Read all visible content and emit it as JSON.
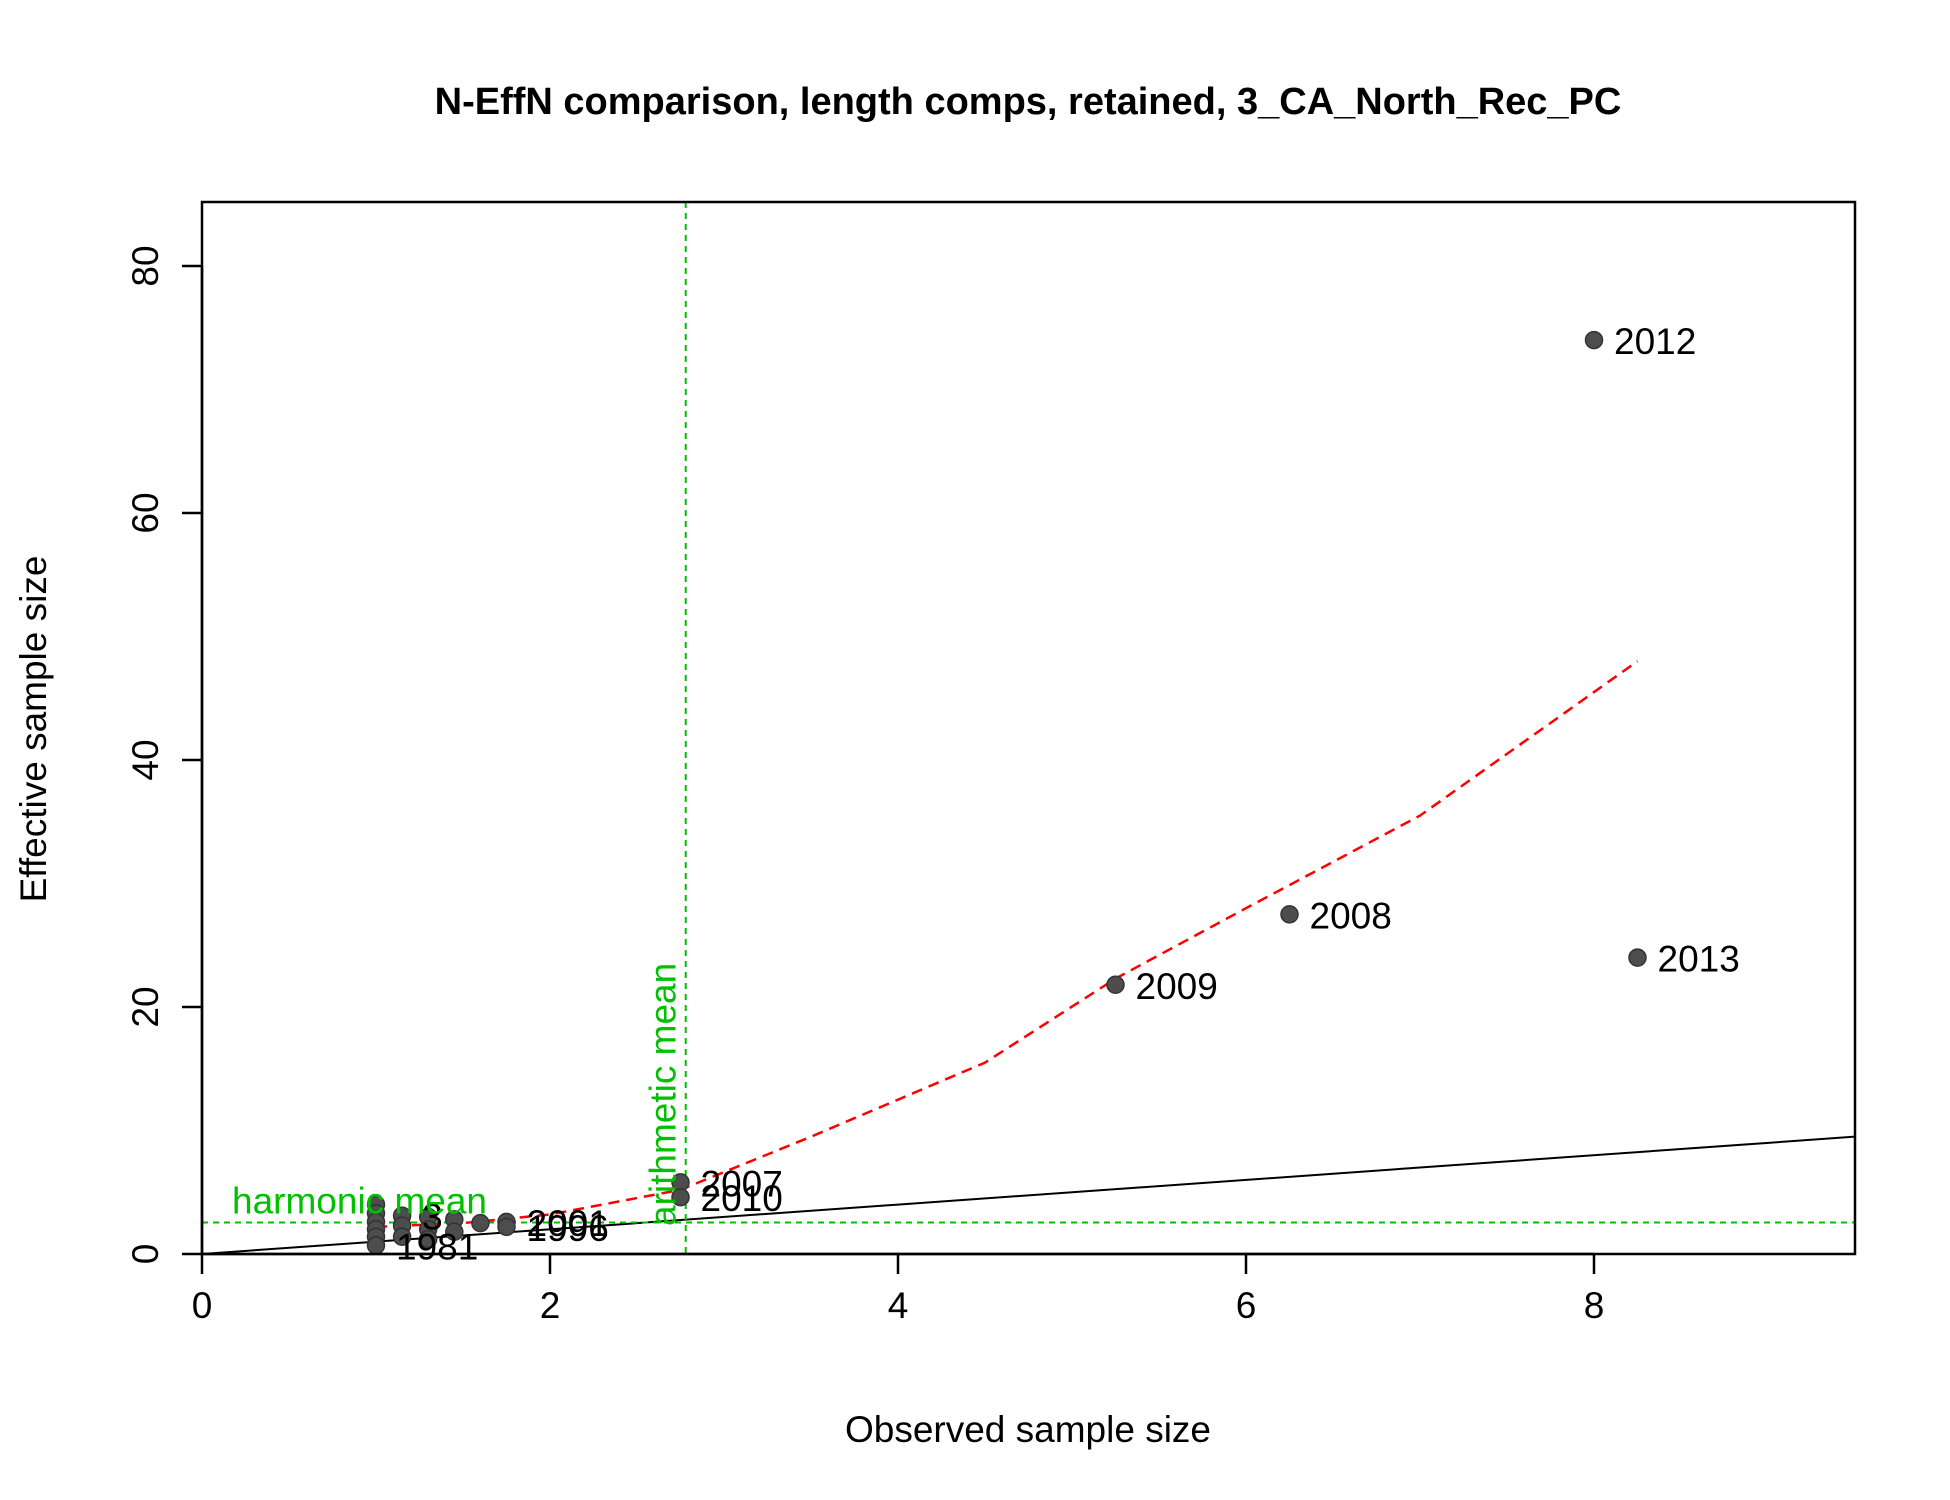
{
  "chart_data": {
    "type": "scatter",
    "title": "N-EffN comparison, length comps, retained, 3_CA_North_Rec_PC",
    "xlabel": "Observed sample size",
    "ylabel": "Effective sample size",
    "xlim": [
      0,
      9.5
    ],
    "ylim": [
      0,
      80
    ],
    "xticks": [
      0,
      2,
      4,
      6,
      8
    ],
    "yticks": [
      0,
      20,
      40,
      60,
      80
    ],
    "grid": false,
    "legend": "none",
    "points": [
      {
        "x": 8.0,
        "y": 74.0,
        "label": "2012"
      },
      {
        "x": 6.25,
        "y": 27.5,
        "label": "2008"
      },
      {
        "x": 8.25,
        "y": 24.0,
        "label": "2013"
      },
      {
        "x": 5.25,
        "y": 21.8,
        "label": "2009"
      },
      {
        "x": 2.75,
        "y": 5.8,
        "label": "2007"
      },
      {
        "x": 2.75,
        "y": 4.6,
        "label": "2010"
      },
      {
        "x": 1.75,
        "y": 2.6,
        "label": "2001"
      },
      {
        "x": 1.75,
        "y": 2.2,
        "label": "1996"
      },
      {
        "x": 1.0,
        "y": 4.0,
        "label": ""
      },
      {
        "x": 1.0,
        "y": 3.3,
        "label": ""
      },
      {
        "x": 1.0,
        "y": 2.6,
        "label": ""
      },
      {
        "x": 1.0,
        "y": 2.0,
        "label": ""
      },
      {
        "x": 1.0,
        "y": 1.4,
        "label": ""
      },
      {
        "x": 1.0,
        "y": 0.7,
        "label": "1981"
      },
      {
        "x": 1.15,
        "y": 3.1,
        "label": "3"
      },
      {
        "x": 1.15,
        "y": 2.3,
        "label": ""
      },
      {
        "x": 1.15,
        "y": 1.4,
        "label": ""
      },
      {
        "x": 1.3,
        "y": 3.0,
        "label": ""
      },
      {
        "x": 1.3,
        "y": 2.0,
        "label": ""
      },
      {
        "x": 1.3,
        "y": 1.2,
        "label": ""
      },
      {
        "x": 1.45,
        "y": 2.8,
        "label": ""
      },
      {
        "x": 1.45,
        "y": 1.8,
        "label": ""
      },
      {
        "x": 1.6,
        "y": 2.5,
        "label": ""
      }
    ],
    "reference_line": {
      "slope": 1,
      "intercept": 0
    },
    "loess": [
      [
        1.0,
        2.2
      ],
      [
        1.5,
        2.5
      ],
      [
        2.0,
        3.2
      ],
      [
        2.75,
        5.2
      ],
      [
        3.5,
        9.5
      ],
      [
        4.5,
        15.5
      ],
      [
        5.25,
        22.3
      ],
      [
        6.0,
        28.0
      ],
      [
        7.0,
        35.5
      ],
      [
        8.25,
        48.0
      ]
    ],
    "harmonic_mean": {
      "value": 2.55,
      "label": "harmonic mean"
    },
    "arithmetic_mean": {
      "value": 2.78,
      "label": "arithmetic mean"
    },
    "colors": {
      "points": "#4d4d4d",
      "means": "#00c000",
      "loess": "#ff0000",
      "reference": "#000000"
    }
  }
}
